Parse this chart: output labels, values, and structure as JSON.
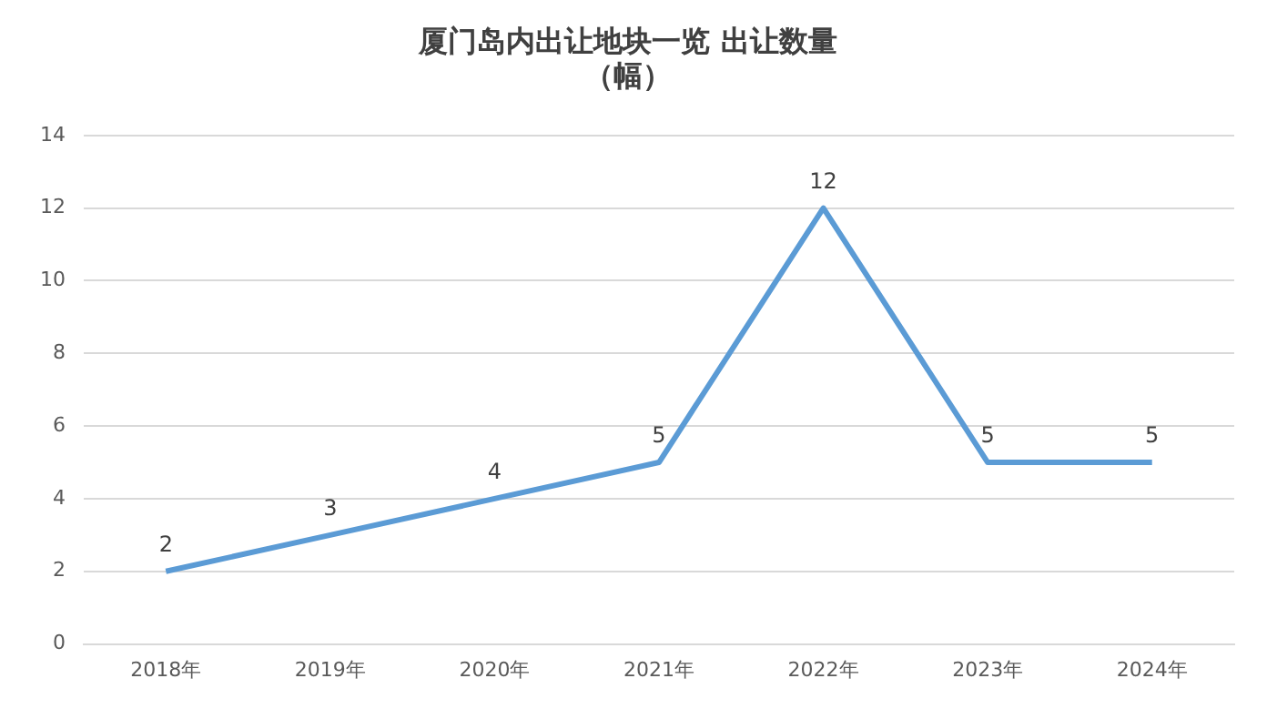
{
  "chart_data": {
    "type": "line",
    "title": "厦门岛内出让地块一览 出让数量",
    "subtitle": "（幅）",
    "categories": [
      "2018年",
      "2019年",
      "2020年",
      "2021年",
      "2022年",
      "2023年",
      "2024年"
    ],
    "series": [
      {
        "color": "#5b9bd5",
        "values": [
          2,
          3,
          4,
          5,
          12,
          5,
          5
        ]
      }
    ],
    "ylim": [
      0,
      14
    ],
    "yticks": [
      0,
      2,
      4,
      6,
      8,
      10,
      12,
      14
    ],
    "grid": "y",
    "data_labels": true,
    "legend": false,
    "marker": "none",
    "line_style": "solid"
  }
}
